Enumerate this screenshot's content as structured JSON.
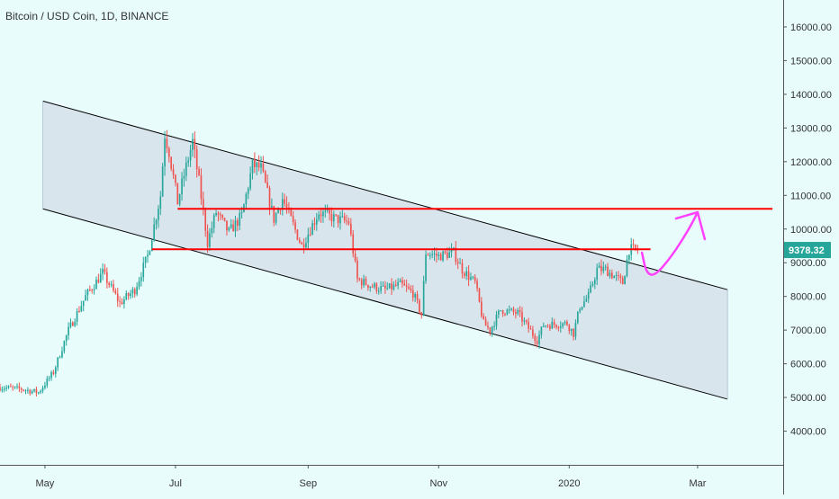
{
  "header": {
    "title": "Bitcoin / USD Coin, 1D, BINANCE"
  },
  "colors": {
    "background": "#e8fcfc",
    "up": "#26a69a",
    "down": "#ef5350",
    "channel_fill": "#d6e0ea",
    "channel_line": "#000000",
    "level_line": "#ff0000",
    "projection": "#ff40ff",
    "price_badge": "#26a69a",
    "axis_text": "#333333",
    "axis_line": "#555555"
  },
  "chart_data": {
    "type": "candlestick",
    "title": "Bitcoin / USD Coin, 1D, BINANCE",
    "y_ticks": [
      4000,
      5000,
      6000,
      7000,
      8000,
      9000,
      10000,
      11000,
      12000,
      13000,
      14000,
      15000,
      16000
    ],
    "y_tick_labels": [
      "4000.00",
      "5000.00",
      "6000.00",
      "7000.00",
      "8000.00",
      "9000.00",
      "10000.00",
      "11000.00",
      "12000.00",
      "13000.00",
      "14000.00",
      "15000.00",
      "16000.00"
    ],
    "ylim": [
      3000,
      16800
    ],
    "x_range": [
      "2019-04-10",
      "2020-04-10"
    ],
    "x_ticks": [
      {
        "date": "2019-05-01",
        "label": "May"
      },
      {
        "date": "2019-07-01",
        "label": "Jul"
      },
      {
        "date": "2019-09-01",
        "label": "Sep"
      },
      {
        "date": "2019-11-01",
        "label": "Nov"
      },
      {
        "date": "2020-01-01",
        "label": "2020"
      },
      {
        "date": "2020-03-01",
        "label": "Mar"
      }
    ],
    "last_price": 9378.32,
    "last_price_label": "9378.32",
    "price_anchors": [
      [
        "2019-04-10",
        5300
      ],
      [
        "2019-04-20",
        5250
      ],
      [
        "2019-04-28",
        5150
      ],
      [
        "2019-05-05",
        5750
      ],
      [
        "2019-05-12",
        7000
      ],
      [
        "2019-05-20",
        8000
      ],
      [
        "2019-05-28",
        8700
      ],
      [
        "2019-06-05",
        7800
      ],
      [
        "2019-06-12",
        8200
      ],
      [
        "2019-06-18",
        9200
      ],
      [
        "2019-06-24",
        11000
      ],
      [
        "2019-06-26",
        12800
      ],
      [
        "2019-06-28",
        12300
      ],
      [
        "2019-07-02",
        10800
      ],
      [
        "2019-07-05",
        11600
      ],
      [
        "2019-07-09",
        12600
      ],
      [
        "2019-07-12",
        11400
      ],
      [
        "2019-07-16",
        9600
      ],
      [
        "2019-07-20",
        10500
      ],
      [
        "2019-07-26",
        9900
      ],
      [
        "2019-08-01",
        10400
      ],
      [
        "2019-08-06",
        11900
      ],
      [
        "2019-08-10",
        11800
      ],
      [
        "2019-08-16",
        10300
      ],
      [
        "2019-08-20",
        10900
      ],
      [
        "2019-08-29",
        9500
      ],
      [
        "2019-09-06",
        10500
      ],
      [
        "2019-09-14",
        10300
      ],
      [
        "2019-09-20",
        10200
      ],
      [
        "2019-09-24",
        8500
      ],
      [
        "2019-10-01",
        8300
      ],
      [
        "2019-10-07",
        8200
      ],
      [
        "2019-10-14",
        8350
      ],
      [
        "2019-10-20",
        8100
      ],
      [
        "2019-10-24",
        7450
      ],
      [
        "2019-10-26",
        9300
      ],
      [
        "2019-11-01",
        9200
      ],
      [
        "2019-11-08",
        9300
      ],
      [
        "2019-11-12",
        8800
      ],
      [
        "2019-11-18",
        8400
      ],
      [
        "2019-11-22",
        7200
      ],
      [
        "2019-11-25",
        7000
      ],
      [
        "2019-11-30",
        7600
      ],
      [
        "2019-12-08",
        7500
      ],
      [
        "2019-12-17",
        6700
      ],
      [
        "2019-12-20",
        7150
      ],
      [
        "2019-12-31",
        7200
      ],
      [
        "2020-01-03",
        6900
      ],
      [
        "2020-01-06",
        7700
      ],
      [
        "2020-01-10",
        8000
      ],
      [
        "2020-01-14",
        8800
      ],
      [
        "2020-01-18",
        8800
      ],
      [
        "2020-01-22",
        8600
      ],
      [
        "2020-01-26",
        8400
      ],
      [
        "2020-01-29",
        9400
      ],
      [
        "2020-02-02",
        9378
      ]
    ],
    "annotations": {
      "channel_upper": [
        [
          "2019-04-30",
          13800
        ],
        [
          "2020-03-15",
          8200
        ]
      ],
      "channel_lower": [
        [
          "2019-04-30",
          10600
        ],
        [
          "2020-03-15",
          4950
        ]
      ],
      "resistance_upper": {
        "x": [
          "2019-07-02",
          "2020-04-05"
        ],
        "y": 10600
      },
      "resistance_lower": {
        "x": [
          "2019-06-20",
          "2020-02-08"
        ],
        "y": 9400
      },
      "projection_path": [
        [
          "2020-02-04",
          9300
        ],
        [
          "2020-02-06",
          8700
        ],
        [
          "2020-02-10",
          8600
        ],
        [
          "2020-02-18",
          9200
        ],
        [
          "2020-02-26",
          10000
        ],
        [
          "2020-03-01",
          10500
        ]
      ],
      "projection_arrow_tip": [
        "2020-03-01",
        10500
      ]
    }
  }
}
